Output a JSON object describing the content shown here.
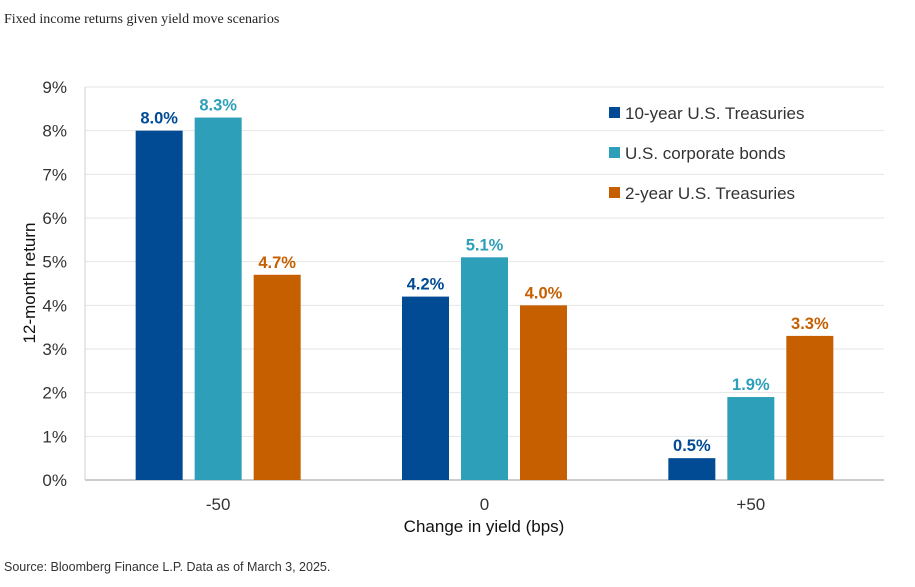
{
  "title": "Fixed income returns given yield move scenarios",
  "source": "Source: Bloomberg Finance L.P. Data as of March 3, 2025.",
  "chart_data": {
    "type": "bar",
    "categories": [
      "-50",
      "0",
      "+50"
    ],
    "series": [
      {
        "name": "10-year U.S. Treasuries",
        "color": "#004b93",
        "values": [
          8.0,
          4.2,
          0.5
        ],
        "labels": [
          "8.0%",
          "4.2%",
          "0.5%"
        ]
      },
      {
        "name": "U.S. corporate bonds",
        "color": "#2e9fb8",
        "values": [
          8.3,
          5.1,
          1.9
        ],
        "labels": [
          "8.3%",
          "5.1%",
          "1.9%"
        ]
      },
      {
        "name": "2-year U.S. Treasuries",
        "color": "#c55f00",
        "values": [
          4.7,
          4.0,
          3.3
        ],
        "labels": [
          "4.7%",
          "4.0%",
          "3.3%"
        ]
      }
    ],
    "xlabel": "Change in yield (bps)",
    "ylabel": "12-month return",
    "ylim": [
      0,
      9
    ],
    "yticks": [
      "0%",
      "1%",
      "2%",
      "3%",
      "4%",
      "5%",
      "6%",
      "7%",
      "8%",
      "9%"
    ],
    "legend_position": "top-right",
    "grid": true
  }
}
